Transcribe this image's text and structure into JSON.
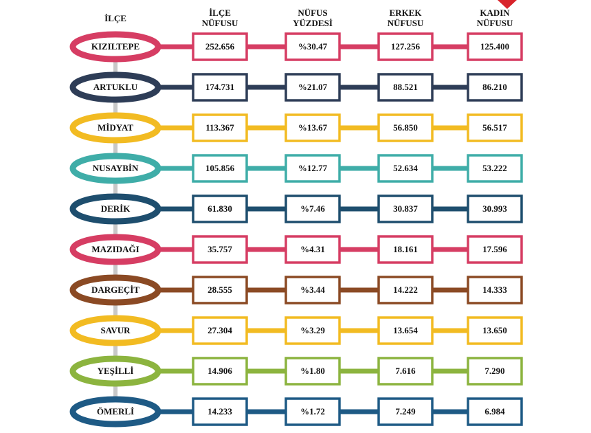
{
  "table": {
    "headers": [
      [
        "İLÇE"
      ],
      [
        "İLÇE",
        "NÜFUSU"
      ],
      [
        "NÜFUS",
        "YÜZDESİ"
      ],
      [
        "ERKEK",
        "NÜFUSU"
      ],
      [
        "KADIN",
        "NÜFUSU"
      ]
    ],
    "rows": [
      [
        "KIZILTEPE",
        "252.656",
        "%30.47",
        "127.256",
        "125.400"
      ],
      [
        "ARTUKLU",
        "174.731",
        "%21.07",
        "88.521",
        "86.210"
      ],
      [
        "MİDYAT",
        "113.367",
        "%13.67",
        "56.850",
        "56.517"
      ],
      [
        "NUSAYBİN",
        "105.856",
        "%12.77",
        "52.634",
        "53.222"
      ],
      [
        "DERİK",
        "61.830",
        "%7.46",
        "30.837",
        "30.993"
      ],
      [
        "MAZIDAĞI",
        "35.757",
        "%4.31",
        "18.161",
        "17.596"
      ],
      [
        "DARGEÇİT",
        "28.555",
        "%3.44",
        "14.222",
        "14.333"
      ],
      [
        "SAVUR",
        "27.304",
        "%3.29",
        "13.654",
        "13.650"
      ],
      [
        "YEŞİLLİ",
        "14.906",
        "%1.80",
        "7.616",
        "7.290"
      ],
      [
        "ÖMERLİ",
        "14.233",
        "%1.72",
        "7.249",
        "6.984"
      ]
    ]
  }
}
